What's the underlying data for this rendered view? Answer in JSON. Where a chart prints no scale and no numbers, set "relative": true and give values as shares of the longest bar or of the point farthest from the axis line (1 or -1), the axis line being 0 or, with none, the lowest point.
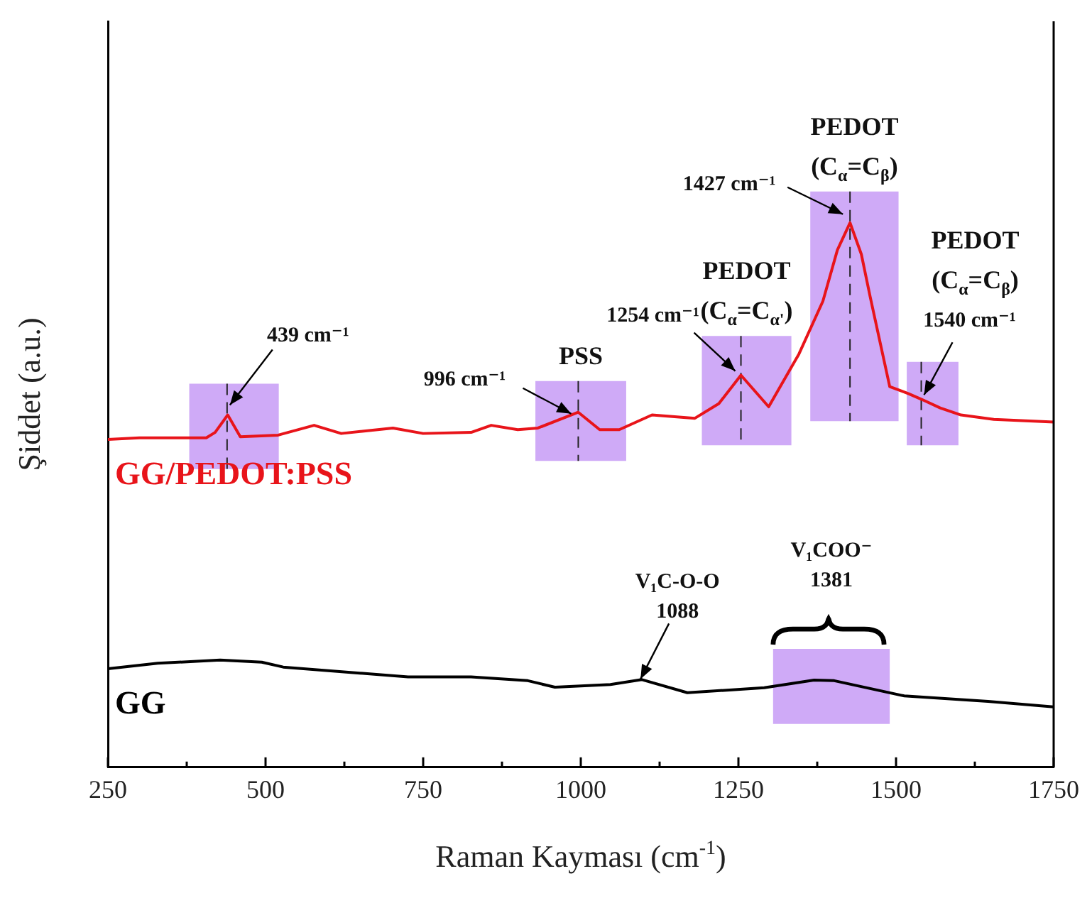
{
  "chart_data": {
    "type": "line",
    "relative": true,
    "xlabel": "Raman Kayması (cm$^{-1}$)",
    "ylabel": "Şiddet (a.u.)",
    "xlim": [
      250,
      1750
    ],
    "xticks": [
      250,
      {
        "value": 375,
        "label": null
      },
      500,
      {
        "value": 625,
        "label": null
      },
      750,
      {
        "value": 875,
        "label": null
      },
      1000,
      {
        "value": 1125,
        "label": null
      },
      1250,
      {
        "value": 1375,
        "label": null
      },
      1500,
      {
        "value": 1625,
        "label": null
      },
      1750
    ],
    "legend": false,
    "marker": "none",
    "grid": false,
    "series": [
      {
        "name": "GG/PEDOT:PSS",
        "color": "#e8141a",
        "x": [
          250,
          300,
          406,
          420,
          440,
          460,
          520,
          577,
          620,
          702,
          750,
          826,
          858,
          900,
          932,
          996,
          1030,
          1061,
          1113,
          1181,
          1219,
          1254,
          1298,
          1346,
          1384,
          1407,
          1427,
          1445,
          1459,
          1490,
          1520,
          1540,
          1570,
          1603,
          1655,
          1750
        ],
        "values": [
          0.602,
          0.605,
          0.605,
          0.615,
          0.647,
          0.607,
          0.61,
          0.628,
          0.613,
          0.623,
          0.613,
          0.615,
          0.628,
          0.62,
          0.623,
          0.652,
          0.62,
          0.62,
          0.647,
          0.641,
          0.668,
          0.72,
          0.662,
          0.759,
          0.856,
          0.95,
          1,
          0.942,
          0.864,
          0.699,
          0.686,
          0.676,
          0.66,
          0.647,
          0.639,
          0.634
        ]
      },
      {
        "name": "GG",
        "color": "#000000",
        "x": [
          250,
          329,
          428,
          494,
          528,
          726,
          826,
          916,
          959,
          1047,
          1097,
          1169,
          1291,
          1370,
          1402,
          1513,
          1646,
          1750
        ],
        "values": [
          0.181,
          0.191,
          0.197,
          0.193,
          0.184,
          0.166,
          0.166,
          0.159,
          0.147,
          0.152,
          0.161,
          0.137,
          0.146,
          0.16,
          0.159,
          0.131,
          0.121,
          0.111
        ]
      }
    ],
    "bands": [
      {
        "axis": "x",
        "from": 379,
        "to": 521,
        "color": "#cfaaf7"
      },
      {
        "axis": "x",
        "from": 928,
        "to": 1072,
        "label": "PSS",
        "color": "#cfaaf7"
      },
      {
        "axis": "x",
        "from": 1192,
        "to": 1334,
        "label": "PEDOT (C$_{α}$=C$_{α'}$)",
        "color": "#cfaaf7"
      },
      {
        "axis": "x",
        "from": 1364,
        "to": 1504,
        "label": "PEDOT (C$_{α}$=C$_{β}$)",
        "color": "#cfaaf7"
      },
      {
        "axis": "x",
        "from": 1517,
        "to": 1599,
        "label": "PEDOT (C$_{α}$=C$_{β}$)",
        "color": "#cfaaf7"
      },
      {
        "axis": "x",
        "from": 1305,
        "to": 1490,
        "label": "V₁COO⁻ 1381",
        "color": "#cfaaf7"
      }
    ],
    "ref_lines": [
      {
        "axis": "x",
        "value": 439,
        "line_style": "dashed",
        "color": "#222222"
      },
      {
        "axis": "x",
        "value": 996,
        "line_style": "dashed",
        "color": "#222222"
      },
      {
        "axis": "x",
        "value": 1254,
        "line_style": "dashed",
        "color": "#222222"
      },
      {
        "axis": "x",
        "value": 1427,
        "line_style": "dashed",
        "color": "#222222"
      },
      {
        "axis": "x",
        "value": 1540,
        "line_style": "dashed",
        "color": "#222222"
      }
    ],
    "annotations": [
      {
        "text": "439 cm⁻¹",
        "x": 439,
        "y": 0.647
      },
      {
        "text": "996 cm⁻¹",
        "x": 996,
        "y": 0.652
      },
      {
        "text": "1254 cm⁻¹",
        "x": 1254,
        "y": 0.72
      },
      {
        "text": "1427 cm⁻¹",
        "x": 1427,
        "y": 1
      },
      {
        "text": "1540 cm⁻¹",
        "x": 1540,
        "y": 0.676
      },
      {
        "text": "V₁C-O-O 1088",
        "x": 1088,
        "y": 0.157
      }
    ]
  }
}
